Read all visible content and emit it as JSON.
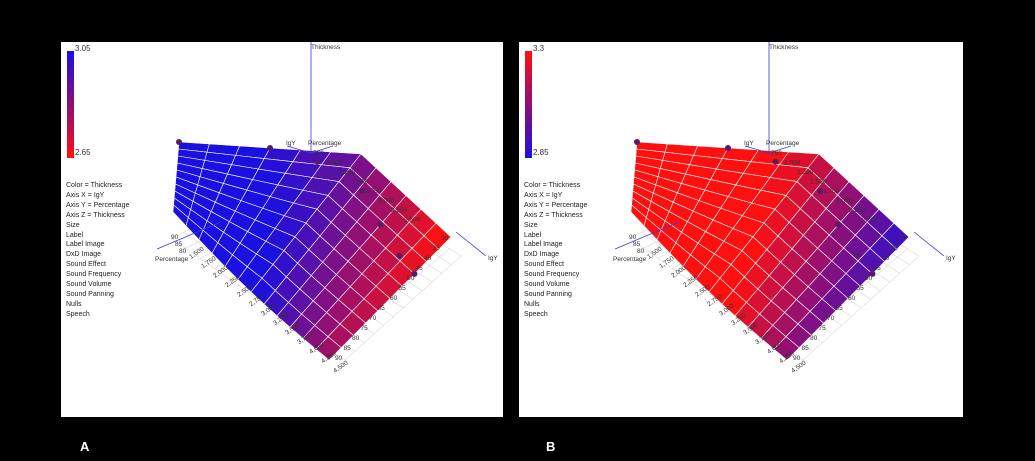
{
  "figure": {
    "label_a": "A",
    "label_b": "B"
  },
  "panel_a": {
    "colorbar": {
      "max": "3.05",
      "min": "2.65",
      "top_color": "#1a10e0",
      "bottom_color": "#ff1010"
    },
    "legend": [
      "Color = Thickness",
      "Axis X = IgY",
      "Axis Y = Percentage",
      "Axis Z = Thickness",
      "Size",
      "Label",
      "Label Image",
      "DxD Image",
      "Sound Effect",
      "Sound Frequency",
      "Sound Volume",
      "Sound Panning",
      "Nulls",
      "Speech"
    ],
    "axes": {
      "vertical": "Thickness",
      "back_x": "IgY",
      "back_y": "Percentage",
      "front_y": "Percentage",
      "front_x": "IgY"
    },
    "vertical_ticks": [
      "750",
      "1,000",
      "1,250",
      "1,500",
      "1,750",
      "2,000",
      "2,250",
      "2,500"
    ],
    "right_ticks": [
      "30",
      "35",
      "40",
      "45",
      "50",
      "55",
      "60",
      "65",
      "70",
      "75",
      "80",
      "85",
      "90"
    ],
    "left_ticks": [
      "90",
      "85",
      "80"
    ],
    "front_ticks": [
      "1,500",
      "1,750",
      "2,000",
      "2,250",
      "2,500",
      "2,750",
      "3,000",
      "3,250",
      "3,500",
      "3,750",
      "4,000",
      "4,250",
      "4,500"
    ]
  },
  "panel_b": {
    "colorbar": {
      "max": "3.3",
      "min": "2.85",
      "top_color": "#ff1010",
      "bottom_color": "#1a10e0"
    },
    "legend": [
      "Color = Thickness",
      "Axis X = IgY",
      "Axis Y = Percentage",
      "Axis Z = Thickness",
      "Size",
      "Label",
      "Label Image",
      "DxD Image",
      "Sound Effect",
      "Sound Frequency",
      "Sound Volume",
      "Sound Panning",
      "Nulls",
      "Speech"
    ],
    "axes": {
      "vertical": "Thickness",
      "back_x": "IgY",
      "back_y": "Percentage",
      "front_y": "Percentage",
      "front_x": "IgY"
    },
    "vertical_ticks": [
      "750",
      "1,000",
      "1,250",
      "1,500",
      "1,750",
      "2,000",
      "2,250",
      "2,500"
    ],
    "right_ticks": [
      "30",
      "35",
      "40",
      "45",
      "50",
      "55",
      "60",
      "65",
      "70",
      "75",
      "80",
      "85",
      "90"
    ],
    "left_ticks": [
      "90",
      "85",
      "80"
    ],
    "front_ticks": [
      "1,500",
      "1,750",
      "2,000",
      "2,250",
      "2,500",
      "2,750",
      "3,000",
      "3,250",
      "3,500",
      "3,750",
      "4,000",
      "4,250",
      "4,500"
    ]
  },
  "chart_data": [
    {
      "type": "surface",
      "panel": "A",
      "color_by": "Thickness",
      "x_axis": "IgY",
      "y_axis": "Percentage",
      "z_axis": "Thickness",
      "color_range": [
        2.65,
        3.05
      ],
      "colors": {
        "high": "#1a10e0",
        "low": "#ff1010"
      },
      "percentage_ticks": [
        30,
        35,
        40,
        45,
        50,
        55,
        60,
        65,
        70,
        75,
        80,
        85,
        90
      ],
      "igy_ticks": [
        750,
        1000,
        1250,
        1500,
        1750,
        2000,
        2250,
        2500,
        2750,
        3000,
        3250,
        3500,
        3750,
        4000,
        4250,
        4500
      ]
    },
    {
      "type": "surface",
      "panel": "B",
      "color_by": "Thickness",
      "x_axis": "IgY",
      "y_axis": "Percentage",
      "z_axis": "Thickness",
      "color_range": [
        2.85,
        3.3
      ],
      "colors": {
        "high": "#ff1010",
        "low": "#1a10e0"
      },
      "percentage_ticks": [
        30,
        35,
        40,
        45,
        50,
        55,
        60,
        65,
        70,
        75,
        80,
        85,
        90
      ],
      "igy_ticks": [
        750,
        1000,
        1250,
        1500,
        1750,
        2000,
        2250,
        2500,
        2750,
        3000,
        3250,
        3500,
        3750,
        4000,
        4250,
        4500
      ]
    }
  ]
}
